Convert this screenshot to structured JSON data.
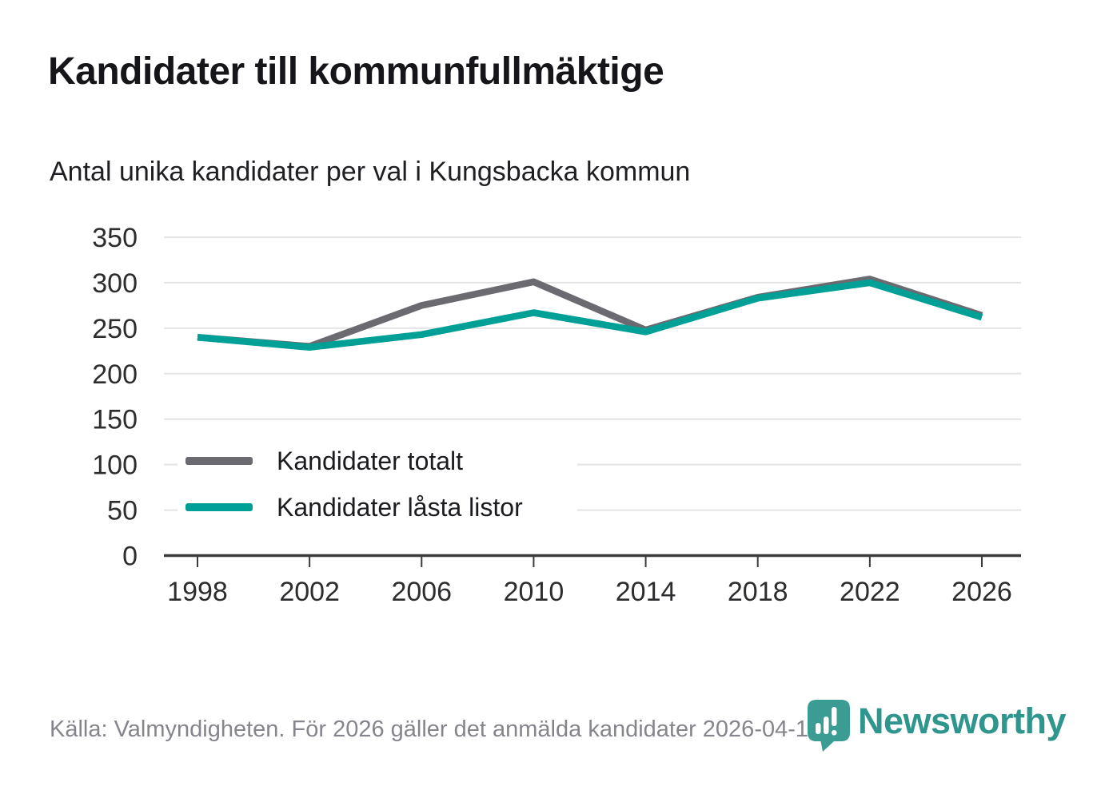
{
  "header": {
    "title": "Kandidater till kommunfullmäktige",
    "subtitle": "Antal unika kandidater per val i Kungsbacka kommun"
  },
  "chart_data": {
    "type": "line",
    "title": "Kandidater till kommunfullmäktige",
    "subtitle": "Antal unika kandidater per val i Kungsbacka kommun",
    "x": [
      1998,
      2002,
      2006,
      2010,
      2014,
      2018,
      2022,
      2026
    ],
    "series": [
      {
        "name": "Kandidater totalt",
        "color": "#6A6A70",
        "values": [
          240,
          230,
          275,
          301,
          248,
          284,
          304,
          264
        ]
      },
      {
        "name": "Kandidater låsta listor",
        "color": "#00A096",
        "values": [
          240,
          229,
          243,
          267,
          246,
          283,
          300,
          262
        ]
      }
    ],
    "xlabel": "",
    "ylabel": "",
    "ylim": [
      0,
      350
    ],
    "yticks": [
      0,
      50,
      100,
      150,
      200,
      250,
      300,
      350
    ],
    "grid": "horizontal",
    "legend_position": "inside-left"
  },
  "footer": {
    "source": "Källa: Valmyndigheten. För 2026 gäller det anmälda kandidater 2026-04-10.",
    "brand": "Newsworthy",
    "brand_color": "#2F968E"
  },
  "colors": {
    "grid": "#E4E4E4",
    "axis": "#3B3B3B",
    "tick_text": "#2D2D30",
    "pin_teal": "#3A9C93"
  },
  "icons": {
    "logo": "newsworthy-pin-barchart-icon"
  }
}
